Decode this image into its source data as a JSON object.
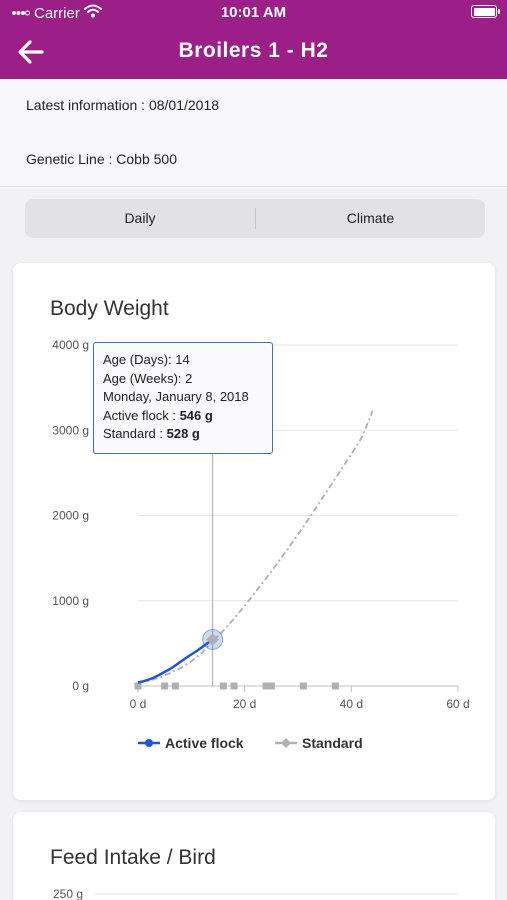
{
  "status_bar": {
    "carrier": "Carrier",
    "time": "10:01 AM",
    "battery_level": 1.0
  },
  "header": {
    "title": "Broilers 1 - H2"
  },
  "info": {
    "latest": "Latest information : 08/01/2018",
    "genetic_line": "Genetic Line : Cobb 500"
  },
  "tabs": [
    {
      "label": "Daily"
    },
    {
      "label": "Climate"
    }
  ],
  "colors": {
    "header": "#9b1f86",
    "active_flock": "#1f56d9",
    "standard": "#b0b0b4"
  },
  "body_weight": {
    "title": "Body Weight",
    "tooltip": {
      "age_days": "Age (Days): 14",
      "age_weeks": "Age (Weeks): 2",
      "date": "Monday, January 8, 2018",
      "active_label": "Active flock : ",
      "active_value": "546 g",
      "standard_label": "Standard : ",
      "standard_value": "528 g"
    },
    "legend": {
      "active": "Active flock",
      "standard": "Standard"
    },
    "chart_data": {
      "type": "line",
      "title": "Body Weight",
      "xlim": [
        0,
        60
      ],
      "ylim": [
        0,
        4000
      ],
      "x_ticks": [
        "0 d",
        "20 d",
        "40 d",
        "60 d"
      ],
      "y_ticks": [
        "0 g",
        "1000 g",
        "2000 g",
        "3000 g",
        "4000 g"
      ],
      "grid": true,
      "legend_position": "bottom",
      "highlight": {
        "x": 14,
        "y": 546
      },
      "crosshair_x": 14,
      "series": [
        {
          "name": "Active flock",
          "style": "solid",
          "x": [
            0,
            1,
            2,
            3,
            4,
            5,
            6,
            7,
            8,
            9,
            10,
            11,
            12,
            13,
            14
          ],
          "y": [
            40,
            55,
            75,
            100,
            130,
            165,
            200,
            240,
            285,
            330,
            370,
            410,
            455,
            500,
            546
          ]
        },
        {
          "name": "Standard",
          "style": "dashed",
          "x": [
            0,
            2,
            4,
            6,
            8,
            10,
            12,
            14,
            16,
            18,
            20,
            22,
            24,
            26,
            28,
            30,
            32,
            34,
            36,
            38,
            40,
            42,
            44
          ],
          "y": [
            42,
            60,
            100,
            150,
            210,
            290,
            390,
            528,
            650,
            790,
            940,
            1100,
            1260,
            1430,
            1600,
            1780,
            1960,
            2150,
            2340,
            2530,
            2720,
            2920,
            3230
          ]
        }
      ],
      "event_markers_x": [
        0,
        5,
        7,
        16,
        18,
        24,
        25,
        31,
        37
      ]
    }
  },
  "feed_intake": {
    "title": "Feed Intake / Bird",
    "chart_data": {
      "type": "line",
      "title": "Feed Intake / Bird",
      "y_ticks": [
        "250 g"
      ]
    }
  }
}
